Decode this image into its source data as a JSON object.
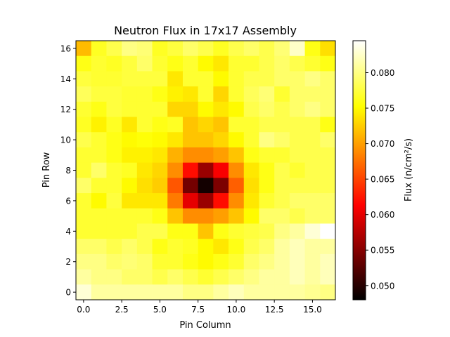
{
  "chart_data": {
    "type": "heatmap",
    "title": "Neutron Flux in 17x17 Assembly",
    "xlabel": "Pin Column",
    "ylabel": "Pin Row",
    "colorbar_label": "Flux (n/cm²/s)",
    "colormap": "hot",
    "clim": [
      0.048,
      0.0845
    ],
    "xlim": [
      -0.5,
      16.5
    ],
    "ylim": [
      -0.5,
      16.5
    ],
    "x_ticks": [
      0,
      2.5,
      5,
      7.5,
      10,
      12.5,
      15
    ],
    "x_tick_labels": [
      "0.0",
      "2.5",
      "5.0",
      "7.5",
      "10.0",
      "12.5",
      "15.0"
    ],
    "y_ticks": [
      0,
      2,
      4,
      6,
      8,
      10,
      12,
      14,
      16
    ],
    "y_tick_labels": [
      "0",
      "2",
      "4",
      "6",
      "8",
      "10",
      "12",
      "14",
      "16"
    ],
    "colorbar_ticks": [
      0.05,
      0.055,
      0.06,
      0.065,
      0.07,
      0.075,
      0.08
    ],
    "colorbar_tick_labels": [
      "0.050",
      "0.055",
      "0.060",
      "0.065",
      "0.070",
      "0.075",
      "0.080"
    ],
    "grid": false,
    "rows_note_top_to_bottom": "values[0] is row 16 (top), values[16] is row 0 (bottom); each row lists columns 0..16",
    "values": [
      [
        0.0715,
        0.0765,
        0.078,
        0.08,
        0.0795,
        0.0765,
        0.0775,
        0.079,
        0.078,
        0.0765,
        0.078,
        0.079,
        0.078,
        0.0795,
        0.0825,
        0.076,
        0.0735
      ],
      [
        0.076,
        0.077,
        0.0765,
        0.0775,
        0.079,
        0.077,
        0.076,
        0.077,
        0.075,
        0.074,
        0.077,
        0.077,
        0.078,
        0.079,
        0.078,
        0.077,
        0.076
      ],
      [
        0.0775,
        0.077,
        0.077,
        0.0775,
        0.0775,
        0.0775,
        0.074,
        0.077,
        0.077,
        0.075,
        0.077,
        0.078,
        0.078,
        0.079,
        0.079,
        0.08,
        0.079
      ],
      [
        0.0785,
        0.0775,
        0.0775,
        0.077,
        0.077,
        0.076,
        0.0745,
        0.074,
        0.077,
        0.073,
        0.077,
        0.0785,
        0.0795,
        0.077,
        0.079,
        0.079,
        0.079
      ],
      [
        0.077,
        0.076,
        0.0775,
        0.077,
        0.077,
        0.077,
        0.073,
        0.073,
        0.075,
        0.074,
        0.075,
        0.078,
        0.079,
        0.078,
        0.079,
        0.08,
        0.079
      ],
      [
        0.0765,
        0.0745,
        0.0765,
        0.074,
        0.077,
        0.076,
        0.0765,
        0.072,
        0.073,
        0.072,
        0.077,
        0.077,
        0.078,
        0.078,
        0.078,
        0.078,
        0.076
      ],
      [
        0.078,
        0.077,
        0.076,
        0.075,
        0.0755,
        0.075,
        0.074,
        0.072,
        0.072,
        0.073,
        0.075,
        0.077,
        0.08,
        0.079,
        0.078,
        0.078,
        0.079
      ],
      [
        0.077,
        0.077,
        0.076,
        0.0745,
        0.0745,
        0.074,
        0.071,
        0.069,
        0.069,
        0.07,
        0.072,
        0.076,
        0.077,
        0.077,
        0.078,
        0.078,
        0.078
      ],
      [
        0.077,
        0.079,
        0.077,
        0.0765,
        0.074,
        0.073,
        0.069,
        0.062,
        0.056,
        0.061,
        0.069,
        0.074,
        0.076,
        0.078,
        0.077,
        0.078,
        0.078
      ],
      [
        0.079,
        0.077,
        0.077,
        0.075,
        0.0735,
        0.0725,
        0.066,
        0.054,
        0.049,
        0.0545,
        0.0665,
        0.0735,
        0.076,
        0.078,
        0.078,
        0.078,
        0.078
      ],
      [
        0.077,
        0.075,
        0.0775,
        0.074,
        0.074,
        0.074,
        0.068,
        0.06,
        0.056,
        0.062,
        0.069,
        0.074,
        0.077,
        0.078,
        0.079,
        0.079,
        0.079
      ],
      [
        0.077,
        0.077,
        0.077,
        0.077,
        0.077,
        0.076,
        0.072,
        0.069,
        0.069,
        0.07,
        0.072,
        0.075,
        0.079,
        0.079,
        0.078,
        0.079,
        0.079
      ],
      [
        0.077,
        0.077,
        0.077,
        0.077,
        0.078,
        0.078,
        0.076,
        0.076,
        0.072,
        0.076,
        0.077,
        0.0775,
        0.078,
        0.08,
        0.081,
        0.083,
        0.0845
      ],
      [
        0.079,
        0.079,
        0.078,
        0.079,
        0.078,
        0.076,
        0.077,
        0.0765,
        0.075,
        0.074,
        0.076,
        0.078,
        0.079,
        0.081,
        0.082,
        0.081,
        0.081
      ],
      [
        0.08,
        0.08,
        0.079,
        0.0795,
        0.079,
        0.077,
        0.077,
        0.076,
        0.075,
        0.076,
        0.077,
        0.079,
        0.08,
        0.081,
        0.082,
        0.081,
        0.082
      ],
      [
        0.081,
        0.08,
        0.08,
        0.079,
        0.079,
        0.078,
        0.079,
        0.078,
        0.077,
        0.078,
        0.079,
        0.08,
        0.081,
        0.081,
        0.082,
        0.081,
        0.082
      ],
      [
        0.083,
        0.081,
        0.081,
        0.081,
        0.081,
        0.081,
        0.081,
        0.08,
        0.08,
        0.081,
        0.082,
        0.081,
        0.081,
        0.081,
        0.081,
        0.0805,
        0.08
      ]
    ]
  }
}
